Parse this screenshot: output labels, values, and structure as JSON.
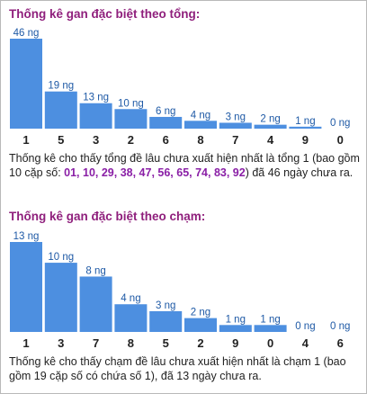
{
  "colors": {
    "title": "#8f1f7c",
    "bar": "#4d8fe0",
    "value_label": "#1f5aa6",
    "category_label": "#222222",
    "highlight_numbers": "#8a1fa6"
  },
  "sections": [
    {
      "title": "Thống kê gan đặc biệt theo tổng:",
      "desc_before": "Thống kê cho thấy tổng đề lâu chưa xuất hiện nhất là tổng 1 (bao gồm 10 cặp số: ",
      "desc_numbers": "01, 10, 29, 38, 47, 56, 65, 74, 83, 92",
      "desc_after": ") đã 46 ngày chưa ra."
    },
    {
      "title": "Thống kê gan đặc biệt theo chạm:",
      "desc_before": "Thống kê cho thấy chạm đề lâu chưa xuất hiện nhất là chạm 1 (bao gồm 19 cặp số có chứa số 1), đã 13 ngày chưa ra.",
      "desc_numbers": "",
      "desc_after": ""
    }
  ],
  "chart_data": [
    {
      "type": "bar",
      "categories": [
        "1",
        "5",
        "3",
        "2",
        "6",
        "8",
        "7",
        "4",
        "9",
        "0"
      ],
      "values": [
        46,
        19,
        13,
        10,
        6,
        4,
        3,
        2,
        1,
        0
      ],
      "data_labels": [
        "46 ng",
        "19 ng",
        "13 ng",
        "10 ng",
        "6 ng",
        "4 ng",
        "3 ng",
        "2 ng",
        "1 ng",
        "0 ng"
      ]
    },
    {
      "type": "bar",
      "categories": [
        "1",
        "3",
        "7",
        "8",
        "5",
        "2",
        "9",
        "0",
        "4",
        "6"
      ],
      "values": [
        13,
        10,
        8,
        4,
        3,
        2,
        1,
        1,
        0,
        0
      ],
      "data_labels": [
        "13 ng",
        "10 ng",
        "8 ng",
        "4 ng",
        "3 ng",
        "2 ng",
        "1 ng",
        "1 ng",
        "0 ng",
        "0 ng"
      ]
    }
  ]
}
